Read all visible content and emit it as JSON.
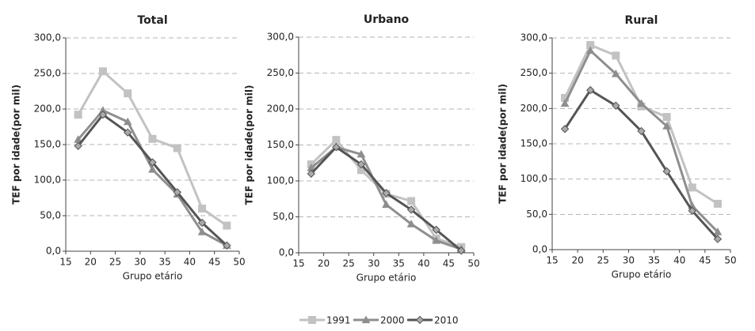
{
  "chart_data": [
    {
      "type": "line",
      "title": "Total",
      "xlabel": "Grupo etário",
      "ylabel": "TEF por idade(por mil)",
      "x": [
        17.5,
        22.5,
        27.5,
        32.5,
        37.5,
        42.5,
        47.5
      ],
      "series": [
        {
          "values": [
            192,
            253,
            222,
            158,
            145,
            60,
            36
          ]
        },
        {
          "values": [
            157,
            198,
            182,
            115,
            80,
            27,
            8
          ]
        },
        {
          "values": [
            148,
            192,
            167,
            125,
            83,
            40,
            8
          ]
        }
      ],
      "xlim": [
        15,
        50
      ],
      "xticks": [
        15,
        20,
        25,
        30,
        35,
        40,
        45,
        50
      ],
      "ylim": [
        0,
        300
      ],
      "yticks": [
        {
          "value": 0,
          "label": "0,0"
        },
        {
          "value": 50,
          "label": "50,0"
        },
        {
          "value": 100,
          "label": "100,0"
        },
        {
          "value": 150,
          "label": "150,0"
        },
        {
          "value": 200,
          "label": "200,0"
        },
        {
          "value": 250,
          "label": "250,0"
        },
        {
          "value": 300,
          "label": "300,0"
        }
      ],
      "grid": true
    },
    {
      "type": "line",
      "title": "Urbano",
      "xlabel": "Grupo etário",
      "ylabel": "TEF por idade(por mil)",
      "x": [
        17.5,
        22.5,
        27.5,
        32.5,
        37.5,
        42.5,
        47.5
      ],
      "series": [
        {
          "values": [
            123,
            157,
            115,
            82,
            72,
            20,
            8
          ]
        },
        {
          "values": [
            118,
            147,
            137,
            67,
            40,
            17,
            5
          ]
        },
        {
          "values": [
            110,
            147,
            123,
            83,
            60,
            32,
            3
          ]
        }
      ],
      "xlim": [
        15,
        50
      ],
      "xticks": [
        15,
        20,
        25,
        30,
        35,
        40,
        45,
        50
      ],
      "ylim": [
        0,
        300
      ],
      "yticks": [
        {
          "value": 0,
          "label": "0,0"
        },
        {
          "value": 50,
          "label": "50,0"
        },
        {
          "value": 100,
          "label": "100,0"
        },
        {
          "value": 150,
          "label": "150,0"
        },
        {
          "value": 200,
          "label": "200,0"
        },
        {
          "value": 250,
          "label": "250,0"
        },
        {
          "value": 300,
          "label": "300,0"
        }
      ],
      "grid": true
    },
    {
      "type": "line",
      "title": "Rural",
      "xlabel": "Grupo etário",
      "ylabel": "TEF por idade(por mil)",
      "x": [
        17.5,
        22.5,
        27.5,
        32.5,
        37.5,
        42.5,
        47.5
      ],
      "series": [
        {
          "values": [
            215,
            290,
            275,
            203,
            188,
            88,
            65
          ]
        },
        {
          "values": [
            207,
            282,
            249,
            207,
            175,
            62,
            25
          ]
        },
        {
          "values": [
            171,
            226,
            204,
            168,
            111,
            55,
            15
          ]
        }
      ],
      "xlim": [
        15,
        50
      ],
      "xticks": [
        15,
        20,
        25,
        30,
        35,
        40,
        45,
        50
      ],
      "ylim": [
        0,
        300
      ],
      "yticks": [
        {
          "value": 0,
          "label": "0,0"
        },
        {
          "value": 50,
          "label": "50,0"
        },
        {
          "value": 100,
          "label": "100,0"
        },
        {
          "value": 150,
          "label": "150,0"
        },
        {
          "value": 200,
          "label": "200,0"
        },
        {
          "value": 250,
          "label": "250,0"
        },
        {
          "value": 300,
          "label": "300,0"
        }
      ],
      "grid": true
    }
  ],
  "legend": [
    {
      "name": "1991",
      "color": "#c2c2c2",
      "marker": "square"
    },
    {
      "name": "2000",
      "color": "#8e8e8e",
      "marker": "triangle"
    },
    {
      "name": "2010",
      "color": "#555555",
      "marker": "diamond"
    }
  ]
}
